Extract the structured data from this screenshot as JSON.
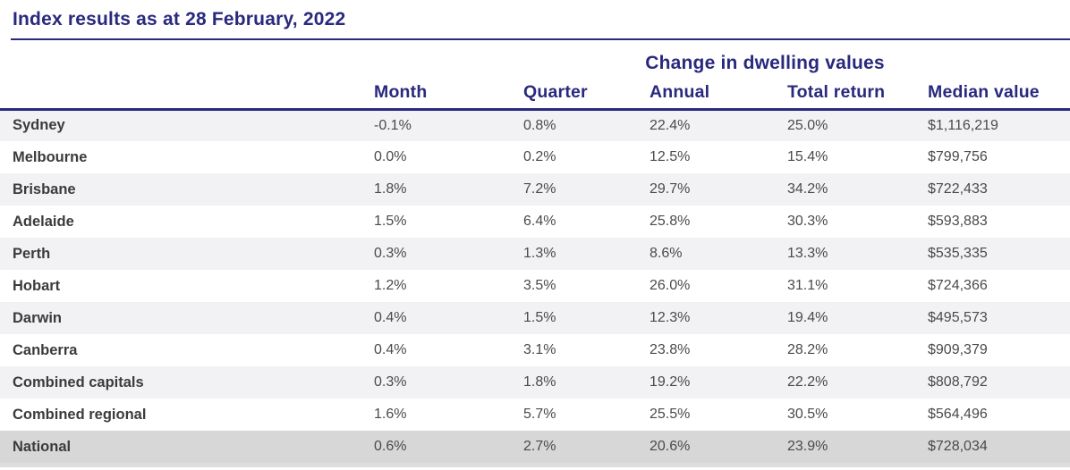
{
  "page": {
    "title": "Index results as at 28 February, 2022"
  },
  "colors": {
    "navy": "#29297E",
    "region_label_text": "#3B3B3B",
    "data_text": "#4A4A4A",
    "row_shaded": "#F2F2F5",
    "row_national": "#D7D7D7",
    "bottom_strip": "#DEDEDE"
  },
  "chart_data": {
    "type": "table",
    "title": "Index results as at 28 February, 2022",
    "group_header": "Change in dwelling values",
    "columns": [
      "Month",
      "Quarter",
      "Annual",
      "Total return",
      "Median value"
    ],
    "rows": [
      {
        "region": "Sydney",
        "values": [
          "-0.1%",
          "0.8%",
          "22.4%",
          "25.0%",
          "$1,116,219"
        ]
      },
      {
        "region": "Melbourne",
        "values": [
          "0.0%",
          "0.2%",
          "12.5%",
          "15.4%",
          "$799,756"
        ]
      },
      {
        "region": "Brisbane",
        "values": [
          "1.8%",
          "7.2%",
          "29.7%",
          "34.2%",
          "$722,433"
        ]
      },
      {
        "region": "Adelaide",
        "values": [
          "1.5%",
          "6.4%",
          "25.8%",
          "30.3%",
          "$593,883"
        ]
      },
      {
        "region": "Perth",
        "values": [
          "0.3%",
          "1.3%",
          "8.6%",
          "13.3%",
          "$535,335"
        ]
      },
      {
        "region": "Hobart",
        "values": [
          "1.2%",
          "3.5%",
          "26.0%",
          "31.1%",
          "$724,366"
        ]
      },
      {
        "region": "Darwin",
        "values": [
          "0.4%",
          "1.5%",
          "12.3%",
          "19.4%",
          "$495,573"
        ]
      },
      {
        "region": "Canberra",
        "values": [
          "0.4%",
          "3.1%",
          "23.8%",
          "28.2%",
          "$909,379"
        ]
      },
      {
        "region": "Combined capitals",
        "values": [
          "0.3%",
          "1.8%",
          "19.2%",
          "22.2%",
          "$808,792"
        ]
      },
      {
        "region": "Combined regional",
        "values": [
          "1.6%",
          "5.7%",
          "25.5%",
          "30.5%",
          "$564,496"
        ]
      },
      {
        "region": "National",
        "values": [
          "0.6%",
          "2.7%",
          "20.6%",
          "23.9%",
          "$728,034"
        ]
      }
    ],
    "layout": {
      "shaded_row_indices": [
        0,
        2,
        4,
        6,
        8
      ],
      "highlight_row": "National"
    }
  }
}
